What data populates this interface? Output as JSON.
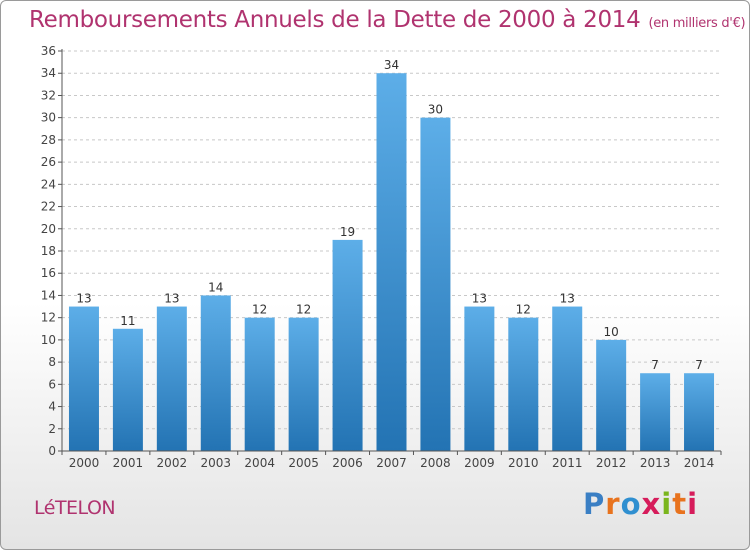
{
  "title": "Remboursements Annuels de la Dette de 2000 à 2014",
  "unit": "(en milliers d'€)",
  "commune": "LéTELON",
  "brand": {
    "text": "Proxiti",
    "colors": [
      "#3a7fc4",
      "#e8731e",
      "#2f8fd0",
      "#d61c5b",
      "#7ab51d",
      "#e8731e",
      "#d61c5b"
    ]
  },
  "colors": {
    "title": "#b0336f",
    "bar_top": "#5daee8",
    "bar_bottom": "#2373b3",
    "grid": "#c8c8c8",
    "axis": "#555555"
  },
  "chart_data": {
    "type": "bar",
    "title": "Remboursements Annuels de la Dette de 2000 à 2014",
    "categories": [
      "2000",
      "2001",
      "2002",
      "2003",
      "2004",
      "2005",
      "2006",
      "2007",
      "2008",
      "2009",
      "2010",
      "2011",
      "2012",
      "2013",
      "2014"
    ],
    "values": [
      13,
      11,
      13,
      14,
      12,
      12,
      19,
      34,
      30,
      13,
      12,
      13,
      10,
      7,
      7
    ],
    "ylim": [
      0,
      36
    ],
    "yticks": [
      0,
      2,
      4,
      6,
      8,
      10,
      12,
      14,
      16,
      18,
      20,
      22,
      24,
      26,
      28,
      30,
      32,
      34,
      36
    ],
    "grid": true,
    "data_labels": true
  }
}
